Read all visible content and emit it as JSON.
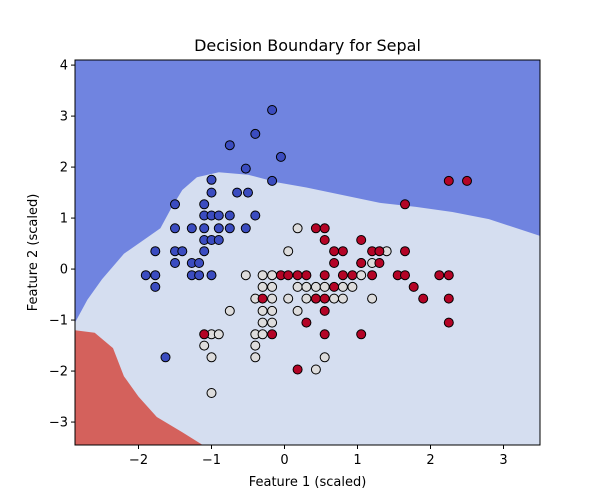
{
  "chart_data": {
    "type": "scatter",
    "title": "Decision Boundary for Sepal",
    "xlabel": "Feature 1 (scaled)",
    "ylabel": "Feature 2 (scaled)",
    "xlim": [
      -2.87,
      3.5
    ],
    "ylim": [
      -3.45,
      4.1
    ],
    "xticks": [
      -2,
      -1,
      0,
      1,
      2,
      3
    ],
    "yticks": [
      -3,
      -2,
      -1,
      0,
      1,
      2,
      3,
      4
    ],
    "xtick_labels": [
      "−2",
      "−1",
      "0",
      "1",
      "2",
      "3"
    ],
    "ytick_labels": [
      "−3",
      "−2",
      "−1",
      "0",
      "1",
      "2",
      "3",
      "4"
    ],
    "grid": false,
    "legend": "none",
    "colors": {
      "region_0": "#7084e0",
      "region_1": "#d5def0",
      "region_2": "#d4615c",
      "class_0": "#3b4cc0",
      "class_1": "#dddcdc",
      "class_2": "#b40426",
      "marker_edge": "#000000"
    },
    "regions": [
      {
        "class": 0,
        "boundary": [
          [
            -2.87,
            -1.05
          ],
          [
            -2.7,
            -0.6
          ],
          [
            -2.5,
            -0.2
          ],
          [
            -2.2,
            0.3
          ],
          [
            -1.9,
            0.6
          ],
          [
            -1.7,
            0.8
          ],
          [
            -1.55,
            1.2
          ],
          [
            -1.4,
            1.55
          ],
          [
            -1.2,
            1.8
          ],
          [
            -0.9,
            1.9
          ],
          [
            -0.5,
            1.85
          ],
          [
            -0.1,
            1.7
          ],
          [
            0.3,
            1.6
          ],
          [
            0.8,
            1.45
          ],
          [
            1.3,
            1.3
          ],
          [
            1.8,
            1.22
          ],
          [
            2.3,
            1.12
          ],
          [
            2.8,
            0.98
          ],
          [
            3.5,
            0.65
          ]
        ]
      },
      {
        "class": 2,
        "boundary": [
          [
            -2.87,
            -1.2
          ],
          [
            -2.6,
            -1.25
          ],
          [
            -2.35,
            -1.55
          ],
          [
            -2.2,
            -2.1
          ],
          [
            -2.0,
            -2.5
          ],
          [
            -1.75,
            -2.9
          ],
          [
            -1.4,
            -3.2
          ],
          [
            -1.12,
            -3.45
          ]
        ]
      }
    ],
    "series": [
      {
        "class": 0,
        "points": [
          [
            -0.17,
            3.12
          ],
          [
            -0.4,
            2.65
          ],
          [
            -0.75,
            2.43
          ],
          [
            -0.05,
            2.2
          ],
          [
            -0.53,
            1.97
          ],
          [
            -1.0,
            1.75
          ],
          [
            -0.17,
            1.73
          ],
          [
            -0.65,
            1.5
          ],
          [
            -0.5,
            1.5
          ],
          [
            -1.0,
            1.5
          ],
          [
            -1.5,
            1.27
          ],
          [
            -1.1,
            1.27
          ],
          [
            -1.1,
            1.05
          ],
          [
            -1.0,
            1.05
          ],
          [
            -0.9,
            1.05
          ],
          [
            -0.75,
            1.05
          ],
          [
            -0.4,
            1.05
          ],
          [
            -1.5,
            0.8
          ],
          [
            -1.27,
            0.8
          ],
          [
            -1.1,
            0.8
          ],
          [
            -0.9,
            0.8
          ],
          [
            -0.75,
            0.8
          ],
          [
            -0.53,
            0.8
          ],
          [
            -1.1,
            0.57
          ],
          [
            -1.0,
            0.57
          ],
          [
            -0.9,
            0.57
          ],
          [
            -1.77,
            0.35
          ],
          [
            -1.5,
            0.35
          ],
          [
            -1.4,
            0.35
          ],
          [
            -1.1,
            0.35
          ],
          [
            -1.27,
            0.12
          ],
          [
            -1.17,
            0.12
          ],
          [
            -1.5,
            0.12
          ],
          [
            -1.9,
            -0.12
          ],
          [
            -1.77,
            -0.12
          ],
          [
            -1.27,
            -0.12
          ],
          [
            -1.17,
            -0.12
          ],
          [
            -1.0,
            -0.12
          ],
          [
            -1.77,
            -0.35
          ],
          [
            -1.63,
            -1.73
          ]
        ]
      },
      {
        "class": 1,
        "points": [
          [
            -0.53,
            -0.12
          ],
          [
            -0.3,
            -0.12
          ],
          [
            -0.17,
            -0.12
          ],
          [
            0.05,
            0.35
          ],
          [
            0.18,
            0.8
          ],
          [
            -0.3,
            -0.35
          ],
          [
            -0.17,
            -0.35
          ],
          [
            0.18,
            -0.35
          ],
          [
            0.3,
            -0.35
          ],
          [
            0.43,
            -0.35
          ],
          [
            0.55,
            -0.35
          ],
          [
            0.8,
            -0.35
          ],
          [
            -0.4,
            -0.58
          ],
          [
            -0.17,
            -0.58
          ],
          [
            0.05,
            -0.58
          ],
          [
            0.3,
            -0.58
          ],
          [
            0.43,
            -0.58
          ],
          [
            0.68,
            -0.58
          ],
          [
            0.8,
            -0.58
          ],
          [
            1.2,
            -0.58
          ],
          [
            -0.3,
            -0.82
          ],
          [
            -0.17,
            -0.82
          ],
          [
            0.18,
            -0.82
          ],
          [
            -0.75,
            -0.82
          ],
          [
            -0.3,
            -1.05
          ],
          [
            -0.17,
            -1.05
          ],
          [
            -0.4,
            -1.28
          ],
          [
            -0.3,
            -1.28
          ],
          [
            -1.0,
            -1.28
          ],
          [
            -0.9,
            -1.28
          ],
          [
            -0.4,
            -1.5
          ],
          [
            -1.1,
            -1.5
          ],
          [
            -0.4,
            -1.73
          ],
          [
            -1.0,
            -1.73
          ],
          [
            0.55,
            -1.73
          ],
          [
            0.43,
            -1.97
          ],
          [
            -1.0,
            -2.43
          ],
          [
            1.05,
            -0.12
          ],
          [
            0.93,
            -0.35
          ],
          [
            1.4,
            0.35
          ],
          [
            1.05,
            0.12
          ],
          [
            1.2,
            0.12
          ]
        ]
      },
      {
        "class": 2,
        "points": [
          [
            2.25,
            1.73
          ],
          [
            2.5,
            1.73
          ],
          [
            1.65,
            1.27
          ],
          [
            0.43,
            0.8
          ],
          [
            0.55,
            0.8
          ],
          [
            1.05,
            0.57
          ],
          [
            0.55,
            0.57
          ],
          [
            0.68,
            0.35
          ],
          [
            0.8,
            0.35
          ],
          [
            1.2,
            0.35
          ],
          [
            1.3,
            0.35
          ],
          [
            1.65,
            0.35
          ],
          [
            0.68,
            0.12
          ],
          [
            1.05,
            0.12
          ],
          [
            1.3,
            0.12
          ],
          [
            -0.05,
            -0.12
          ],
          [
            0.05,
            -0.12
          ],
          [
            0.18,
            -0.12
          ],
          [
            0.3,
            -0.12
          ],
          [
            0.55,
            -0.12
          ],
          [
            0.8,
            -0.12
          ],
          [
            0.93,
            -0.12
          ],
          [
            1.2,
            -0.12
          ],
          [
            1.55,
            -0.12
          ],
          [
            1.65,
            -0.12
          ],
          [
            2.12,
            -0.12
          ],
          [
            2.25,
            -0.12
          ],
          [
            0.68,
            -0.35
          ],
          [
            1.77,
            -0.35
          ],
          [
            -0.3,
            -0.58
          ],
          [
            0.43,
            -0.58
          ],
          [
            0.55,
            -0.58
          ],
          [
            1.9,
            -0.58
          ],
          [
            2.25,
            -0.58
          ],
          [
            0.55,
            -0.82
          ],
          [
            0.3,
            -1.05
          ],
          [
            2.25,
            -1.05
          ],
          [
            -1.1,
            -1.28
          ],
          [
            -0.17,
            -1.28
          ],
          [
            0.55,
            -1.28
          ],
          [
            1.05,
            -1.28
          ],
          [
            0.18,
            -1.97
          ]
        ]
      }
    ]
  }
}
